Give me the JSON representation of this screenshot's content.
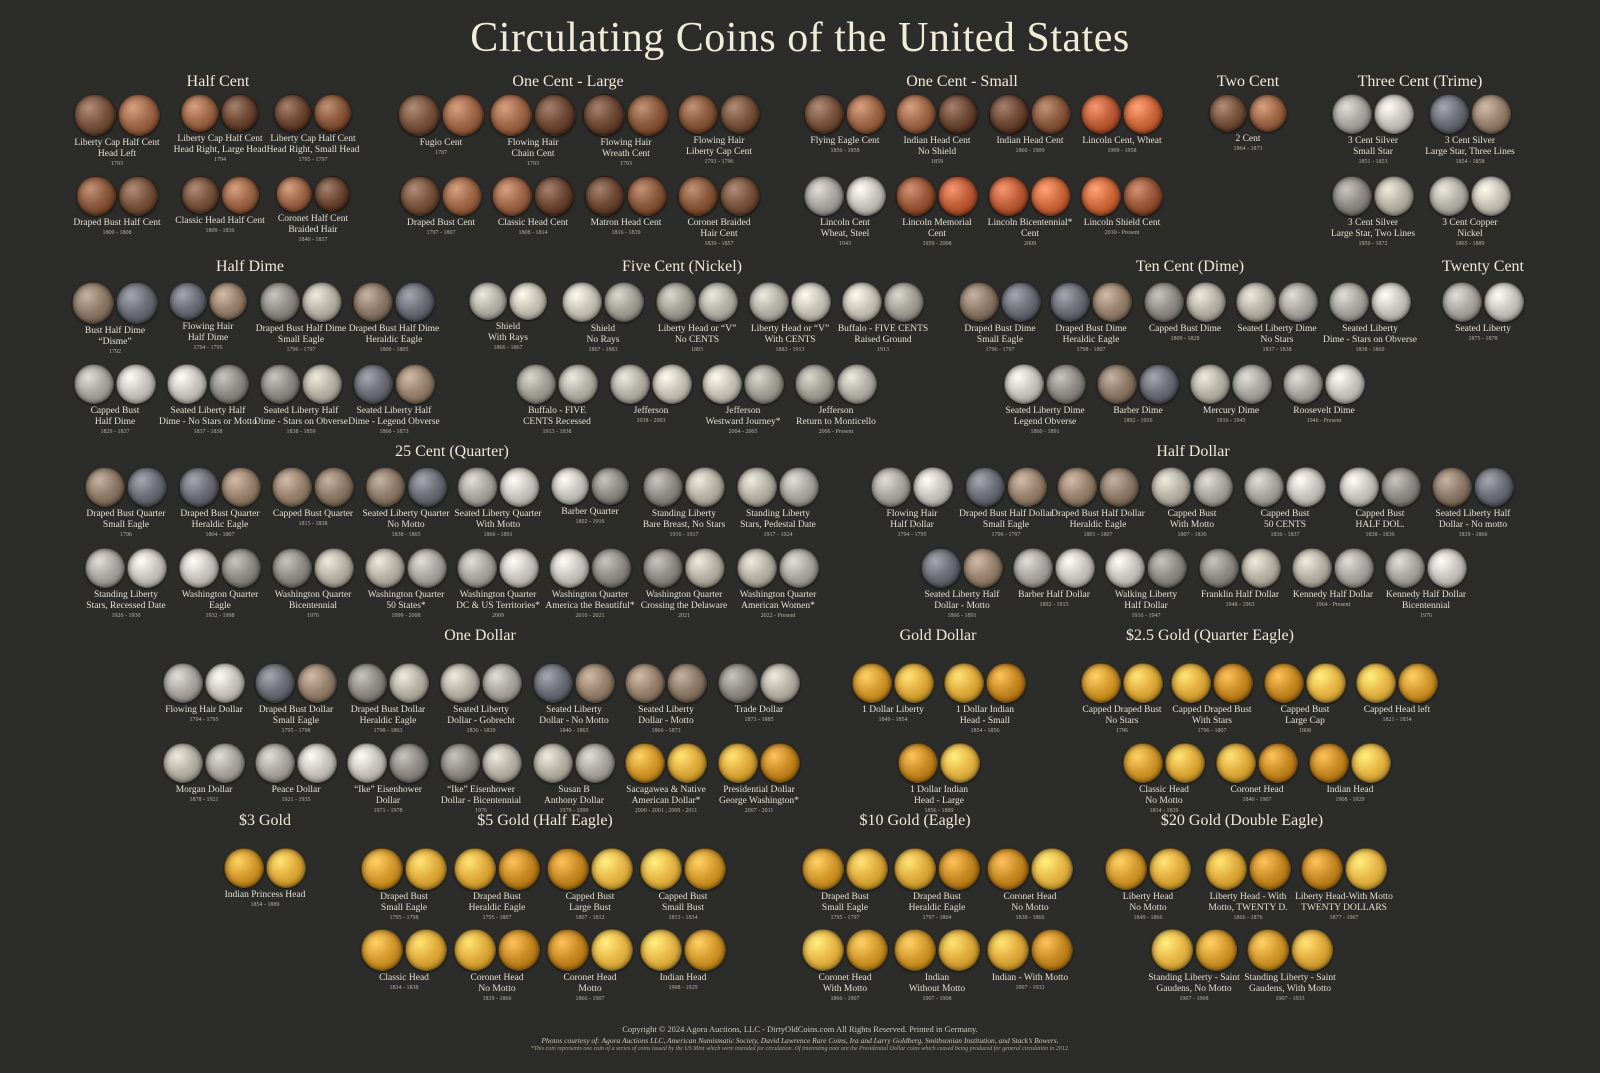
{
  "title": "Circulating Coins of the United States",
  "palette": {
    "copper": [
      "#7a5640",
      "#a0694a",
      "#6e4a37",
      "#8c5b3f"
    ],
    "cent": [
      "#c0603a",
      "#d06b3e",
      "#9c5a3c"
    ],
    "silver": [
      "#a9a7a0",
      "#c8c6be",
      "#8f8d86",
      "#b8b3a7"
    ],
    "toned": [
      "#8f7b69",
      "#6f6f7a",
      "#9a8470"
    ],
    "nickel": [
      "#b5b2a8",
      "#c7c3b7",
      "#a3a096"
    ],
    "gold": [
      "#d49a2e",
      "#e0ac3d",
      "#c98b24",
      "#e8b848"
    ]
  },
  "sections": [
    {
      "title": "Half  Cent",
      "groups": [
        {
          "label": "Liberty Cap Half Cent\nHead Left",
          "date": "1793",
          "metal": "copper"
        },
        {
          "label": "Liberty Cap Half Cent\nHead Right, Large Head",
          "date": "1794",
          "metal": "copper"
        },
        {
          "label": "Liberty Cap Half Cent\nHead Right, Small Head",
          "date": "1795 - 1797",
          "metal": "copper"
        },
        {
          "label": "Draped Bust Half Cent",
          "date": "1800 - 1808",
          "metal": "copper"
        },
        {
          "label": "Classic Head Half Cent",
          "date": "1809 - 1836",
          "metal": "copper"
        },
        {
          "label": "Coronet Half Cent\nBraided Hair",
          "date": "1840 - 1857",
          "metal": "copper"
        }
      ]
    },
    {
      "title": "One Cent - Large",
      "groups": [
        {
          "label": "Fugio Cent",
          "date": "1787",
          "metal": "copper"
        },
        {
          "label": "Flowing Hair\nChain Cent",
          "date": "1793",
          "metal": "copper"
        },
        {
          "label": "Flowing Hair\nWreath Cent",
          "date": "1793",
          "metal": "copper"
        },
        {
          "label": "Flowing Hair\nLiberty Cap Cent",
          "date": "1793 - 1796",
          "metal": "copper"
        },
        {
          "label": "Draped Bust Cent",
          "date": "1797 - 1807",
          "metal": "copper"
        },
        {
          "label": "Classic Head Cent",
          "date": "1808 - 1814",
          "metal": "copper"
        },
        {
          "label": "Matron Head Cent",
          "date": "1816 - 1839",
          "metal": "copper"
        },
        {
          "label": "Coronet Braided\nHair Cent",
          "date": "1839 - 1857",
          "metal": "copper"
        }
      ]
    },
    {
      "title": "One Cent - Small",
      "groups": [
        {
          "label": "Flying Eagle Cent",
          "date": "1856 - 1858",
          "metal": "copper"
        },
        {
          "label": "Indian Head Cent\nNo Shield",
          "date": "1859",
          "metal": "copper"
        },
        {
          "label": "Indian Head Cent",
          "date": "1860 - 1909",
          "metal": "copper"
        },
        {
          "label": "Lincoln Cent, Wheat",
          "date": "1909 - 1958",
          "metal": "cent"
        },
        {
          "label": "Lincoln Cent\nWheat, Steel",
          "date": "1943",
          "metal": "silver"
        },
        {
          "label": "Lincoln Memorial\nCent",
          "date": "1959 - 2008",
          "metal": "cent"
        },
        {
          "label": "Lincoln Bicentennial*\nCent",
          "date": "2009",
          "metal": "cent"
        },
        {
          "label": "Lincoln Shield Cent",
          "date": "2010 - Present",
          "metal": "cent"
        }
      ]
    },
    {
      "title": "Two Cent",
      "groups": [
        {
          "label": "2 Cent",
          "date": "1864 - 1873",
          "metal": "copper"
        }
      ]
    },
    {
      "title": "Three Cent (Trime)",
      "groups": [
        {
          "label": "3 Cent Silver\nSmall Star",
          "date": "1851 - 1853",
          "metal": "silver"
        },
        {
          "label": "3 Cent Silver\nLarge Star, Three Lines",
          "date": "1854 - 1858",
          "metal": "toned"
        },
        {
          "label": "3 Cent Silver\nLarge Star, Two Lines",
          "date": "1859 - 1872",
          "metal": "silver"
        },
        {
          "label": "3 Cent Copper\nNickel",
          "date": "1865 - 1889",
          "metal": "nickel"
        }
      ]
    },
    {
      "title": "Half Dime",
      "groups": [
        {
          "label": "Bust Half Dime\n“Disme”",
          "date": "1792",
          "metal": "toned"
        },
        {
          "label": "Flowing Hair\nHalf Dime",
          "date": "1794 - 1795",
          "metal": "toned"
        },
        {
          "label": "Draped Bust Half Dime\nSmall Eagle",
          "date": "1796 - 1797",
          "metal": "silver"
        },
        {
          "label": "Draped Bust Half Dime\nHeraldic Eagle",
          "date": "1800 - 1805",
          "metal": "toned"
        },
        {
          "label": "Capped Bust\nHalf Dime",
          "date": "1829 - 1837",
          "metal": "silver"
        },
        {
          "label": "Seated Liberty Half\nDime - No Stars or Motto",
          "date": "1837 - 1838",
          "metal": "silver"
        },
        {
          "label": "Seated Liberty Half\nDime - Stars on Obverse",
          "date": "1838 - 1859",
          "metal": "silver"
        },
        {
          "label": "Seated Liberty Half\nDime - Legend Obverse",
          "date": "1860 - 1873",
          "metal": "toned"
        }
      ]
    },
    {
      "title": "Five Cent (Nickel)",
      "groups": [
        {
          "label": "Shield\nWith Rays",
          "date": "1866 - 1867",
          "metal": "nickel"
        },
        {
          "label": "Shield\nNo Rays",
          "date": "1867 - 1883",
          "metal": "nickel"
        },
        {
          "label": "Liberty Head or “V”\nNo CENTS",
          "date": "1883",
          "metal": "nickel"
        },
        {
          "label": "Liberty Head or “V”\nWith CENTS",
          "date": "1883 - 1913",
          "metal": "nickel"
        },
        {
          "label": "Buffalo - FIVE CENTS\nRaised Ground",
          "date": "1913",
          "metal": "nickel"
        },
        {
          "label": "Buffalo - FIVE\nCENTS Recessed",
          "date": "1913 - 1938",
          "metal": "nickel"
        },
        {
          "label": "Jefferson",
          "date": "1938 - 2003",
          "metal": "nickel"
        },
        {
          "label": "Jefferson\nWestward Journey*",
          "date": "2004 - 2005",
          "metal": "nickel"
        },
        {
          "label": "Jefferson\nReturn to Monticello",
          "date": "2006 - Present",
          "metal": "nickel"
        }
      ]
    },
    {
      "title": "Ten Cent (Dime)",
      "groups": [
        {
          "label": "Draped Bust Dime\nSmall Eagle",
          "date": "1796 - 1797",
          "metal": "toned"
        },
        {
          "label": "Draped Bust Dime\nHeraldic Eagle",
          "date": "1798 - 1807",
          "metal": "toned"
        },
        {
          "label": "Capped Bust Dime",
          "date": "1809 - 1828",
          "metal": "silver"
        },
        {
          "label": "Seated Liberty Dime\nNo Stars",
          "date": "1837 - 1838",
          "metal": "silver"
        },
        {
          "label": "Seated Liberty\nDime - Stars on Obverse",
          "date": "1838 - 1860",
          "metal": "silver"
        },
        {
          "label": "Seated Liberty Dime\nLegend Obverse",
          "date": "1860 - 1891",
          "metal": "silver"
        },
        {
          "label": "Barber Dime",
          "date": "1892 - 1916",
          "metal": "toned"
        },
        {
          "label": "Mercury Dime",
          "date": "1916 - 1945",
          "metal": "silver"
        },
        {
          "label": "Roosevelt Dime",
          "date": "1946 - Present",
          "metal": "silver"
        }
      ]
    },
    {
      "title": "Twenty Cent",
      "groups": [
        {
          "label": "Seated Liberty",
          "date": "1875 - 1878",
          "metal": "silver"
        }
      ]
    },
    {
      "title": "25 Cent (Quarter)",
      "groups": [
        {
          "label": "Draped Bust Quarter\nSmall Eagle",
          "date": "1796",
          "metal": "toned"
        },
        {
          "label": "Draped Bust Quarter\nHeraldic Eagle",
          "date": "1804 - 1807",
          "metal": "toned"
        },
        {
          "label": "Capped Bust Quarter",
          "date": "1815 - 1838",
          "metal": "toned"
        },
        {
          "label": "Seated Liberty Quarter\nNo Motto",
          "date": "1838 - 1865",
          "metal": "toned"
        },
        {
          "label": "Seated Liberty Quarter\nWith Motto",
          "date": "1866 - 1891",
          "metal": "silver"
        },
        {
          "label": "Barber Quarter",
          "date": "1892 - 1916",
          "metal": "silver"
        },
        {
          "label": "Standing Liberty\nBare Breast, No Stars",
          "date": "1916 - 1917",
          "metal": "silver"
        },
        {
          "label": "Standing Liberty\nStars, Pedestal Date",
          "date": "1917 - 1924",
          "metal": "silver"
        },
        {
          "label": "Standing Liberty\nStars, Recessed Date",
          "date": "1926 - 1930",
          "metal": "silver"
        },
        {
          "label": "Washington Quarter\nEagle",
          "date": "1932 - 1998",
          "metal": "silver"
        },
        {
          "label": "Washington Quarter\nBicentennial",
          "date": "1976",
          "metal": "silver"
        },
        {
          "label": "Washington Quarter\n50 States*",
          "date": "1999 - 2008",
          "metal": "silver"
        },
        {
          "label": "Washington Quarter\nDC & US Territories*",
          "date": "2009",
          "metal": "silver"
        },
        {
          "label": "Washington Quarter\nAmerica the Beautiful*",
          "date": "2010 - 2021",
          "metal": "silver"
        },
        {
          "label": "Washington Quarter\nCrossing the Delaware",
          "date": "2021",
          "metal": "silver"
        },
        {
          "label": "Washington Quarter\nAmerican Women*",
          "date": "2022 - Present",
          "metal": "silver"
        }
      ]
    },
    {
      "title": "Half Dollar",
      "groups": [
        {
          "label": "Flowing Hair\nHalf Dollar",
          "date": "1794 - 1795",
          "metal": "silver"
        },
        {
          "label": "Draped Bust Half Dollar\nSmall Eagle",
          "date": "1796 - 1797",
          "metal": "toned"
        },
        {
          "label": "Draped Bust Half Dollar\nHeraldic Eagle",
          "date": "1801 - 1807",
          "metal": "toned"
        },
        {
          "label": "Capped Bust\nWith Motto",
          "date": "1807 - 1836",
          "metal": "silver"
        },
        {
          "label": "Capped Bust\n50 CENTS",
          "date": "1836 - 1837",
          "metal": "silver"
        },
        {
          "label": "Capped Bust\nHALF DOL.",
          "date": "1838 - 1839",
          "metal": "silver"
        },
        {
          "label": "Seated Liberty Half\nDollar - No motto",
          "date": "1839 - 1866",
          "metal": "toned"
        },
        {
          "label": "Seated Liberty Half\nDollar - Motto",
          "date": "1866 - 1891",
          "metal": "toned"
        },
        {
          "label": "Barber Half Dollar",
          "date": "1892 - 1915",
          "metal": "silver"
        },
        {
          "label": "Walking Liberty\nHalf Dollar",
          "date": "1916 - 1947",
          "metal": "silver"
        },
        {
          "label": "Franklin Half Dollar",
          "date": "1948 - 1963",
          "metal": "silver"
        },
        {
          "label": "Kennedy Half Dollar",
          "date": "1964 - Present",
          "metal": "silver"
        },
        {
          "label": "Kennedy Half Dollar\nBicentennial",
          "date": "1976",
          "metal": "silver"
        }
      ]
    },
    {
      "title": "One Dollar",
      "groups": [
        {
          "label": "Flowing Hair Dollar",
          "date": "1794 - 1795",
          "metal": "silver"
        },
        {
          "label": "Draped Bust Dollar\nSmall Eagle",
          "date": "1795 - 1798",
          "metal": "toned"
        },
        {
          "label": "Draped Bust Dollar\nHeraldic Eagle",
          "date": "1798 - 1803",
          "metal": "silver"
        },
        {
          "label": "Seated Liberty\nDollar - Gobrecht",
          "date": "1836 - 1839",
          "metal": "silver"
        },
        {
          "label": "Seated Liberty\nDollar - No Motto",
          "date": "1840 - 1865",
          "metal": "toned"
        },
        {
          "label": "Seated Liberty\nDollar - Motto",
          "date": "1866 - 1873",
          "metal": "toned"
        },
        {
          "label": "Trade Dollar",
          "date": "1873 - 1885",
          "metal": "silver"
        },
        {
          "label": "Morgan Dollar",
          "date": "1878 - 1921",
          "metal": "silver"
        },
        {
          "label": "Peace Dollar",
          "date": "1921 - 1935",
          "metal": "silver"
        },
        {
          "label": "“Ike” Eisenhower\nDollar",
          "date": "1971 - 1978",
          "metal": "silver"
        },
        {
          "label": "“Ike” Eisenhower\nDollar - Bicentennial",
          "date": "1976",
          "metal": "silver"
        },
        {
          "label": "Susan B\nAnthony Dollar",
          "date": "1979 - 1999",
          "metal": "silver"
        },
        {
          "label": "Sacagawea & Native\nAmerican Dollar*",
          "date": "2000 - 2001 ; 2009 - 2011",
          "metal": "gold"
        },
        {
          "label": "Presidential Dollar\nGeorge Washington*",
          "date": "2007 - 2011",
          "metal": "gold"
        }
      ]
    },
    {
      "title": "Gold Dollar",
      "groups": [
        {
          "label": "1 Dollar Liberty",
          "date": "1849 - 1854",
          "metal": "gold"
        },
        {
          "label": "1 Dollar Indian\nHead - Small",
          "date": "1854 - 1856",
          "metal": "gold"
        },
        {
          "label": "1 Dollar Indian\nHead - Large",
          "date": "1856 - 1889",
          "metal": "gold"
        }
      ]
    },
    {
      "title": "$2.5 Gold (Quarter Eagle)",
      "groups": [
        {
          "label": "Capped Draped Bust\nNo Stars",
          "date": "1796",
          "metal": "gold"
        },
        {
          "label": "Capped Draped Bust\nWith Stars",
          "date": "1796 - 1807",
          "metal": "gold"
        },
        {
          "label": "Capped Bust\nLarge Cap",
          "date": "1808",
          "metal": "gold"
        },
        {
          "label": "Capped Head left",
          "date": "1821 - 1834",
          "metal": "gold"
        },
        {
          "label": "Classic Head\nNo Motto",
          "date": "1834 - 1839",
          "metal": "gold"
        },
        {
          "label": "Coronet Head",
          "date": "1840 - 1907",
          "metal": "gold"
        },
        {
          "label": "Indian Head",
          "date": "1908 - 1929",
          "metal": "gold"
        }
      ]
    },
    {
      "title": "$3 Gold",
      "groups": [
        {
          "label": "Indian Princess Head",
          "date": "1854 - 1889",
          "metal": "gold"
        }
      ]
    },
    {
      "title": "$5 Gold (Half Eagle)",
      "groups": [
        {
          "label": "Draped Bust\nSmall Eagle",
          "date": "1795 - 1798",
          "metal": "gold"
        },
        {
          "label": "Draped Bust\nHeraldic Eagle",
          "date": "1795 - 1807",
          "metal": "gold"
        },
        {
          "label": "Capped Bust\nLarge Bust",
          "date": "1807 - 1812",
          "metal": "gold"
        },
        {
          "label": "Capped Bust\nSmall Bust",
          "date": "1813 - 1834",
          "metal": "gold"
        },
        {
          "label": "Classic Head",
          "date": "1834 - 1838",
          "metal": "gold"
        },
        {
          "label": "Coronet Head\nNo Motto",
          "date": "1839 - 1866",
          "metal": "gold"
        },
        {
          "label": "Coronet Head\nMotto",
          "date": "1866 - 1907",
          "metal": "gold"
        },
        {
          "label": "Indian Head",
          "date": "1908 - 1929",
          "metal": "gold"
        }
      ]
    },
    {
      "title": "$10 Gold (Eagle)",
      "groups": [
        {
          "label": "Draped Bust\nSmall Eagle",
          "date": "1795 - 1797",
          "metal": "gold"
        },
        {
          "label": "Draped Bust\nHeraldic Eagle",
          "date": "1797 - 1804",
          "metal": "gold"
        },
        {
          "label": "Coronet Head\nNo Motto",
          "date": "1838 - 1866",
          "metal": "gold"
        },
        {
          "label": "Coronet Head\nWith Motto",
          "date": "1866 - 1907",
          "metal": "gold"
        },
        {
          "label": "Indian\nWithout Motto",
          "date": "1907 - 1908",
          "metal": "gold"
        },
        {
          "label": "Indian - With Motto",
          "date": "1907 - 1933",
          "metal": "gold"
        }
      ]
    },
    {
      "title": "$20 Gold (Double Eagle)",
      "groups": [
        {
          "label": "Liberty Head\nNo Motto",
          "date": "1849 - 1866",
          "metal": "gold"
        },
        {
          "label": "Liberty Head - With\nMotto, TWENTY D.",
          "date": "1866 - 1876",
          "metal": "gold"
        },
        {
          "label": "Liberty Head-With Motto\nTWENTY DOLLARS",
          "date": "1877 - 1907",
          "metal": "gold"
        },
        {
          "label": "Standing Liberty - Saint\nGaudens, No Motto",
          "date": "1907 - 1908",
          "metal": "gold"
        },
        {
          "label": "Standing Liberty - Saint\nGaudens, With Motto",
          "date": "1907 - 1933",
          "metal": "gold"
        }
      ]
    }
  ],
  "footer": {
    "line1": "Copyright © 2024  Agora Auctions, LLC - DirtyOldCoins.com  All Rights Reserved. Printed in Germany.",
    "line2": "Photos courtesy of: Agora Auctions LLC, American Numismatic Society, David Lawrence Rare Coins, Ira and Larry Goldberg, Smithsonian Institution, and Stack’s Bowers.",
    "line3": "*This coin represents one coin of a series of coins issued by the US Mint which were intended for circulation. Of interesting note are the Presidential Dollar coins which ceased being produced for general circulation in 2012."
  }
}
